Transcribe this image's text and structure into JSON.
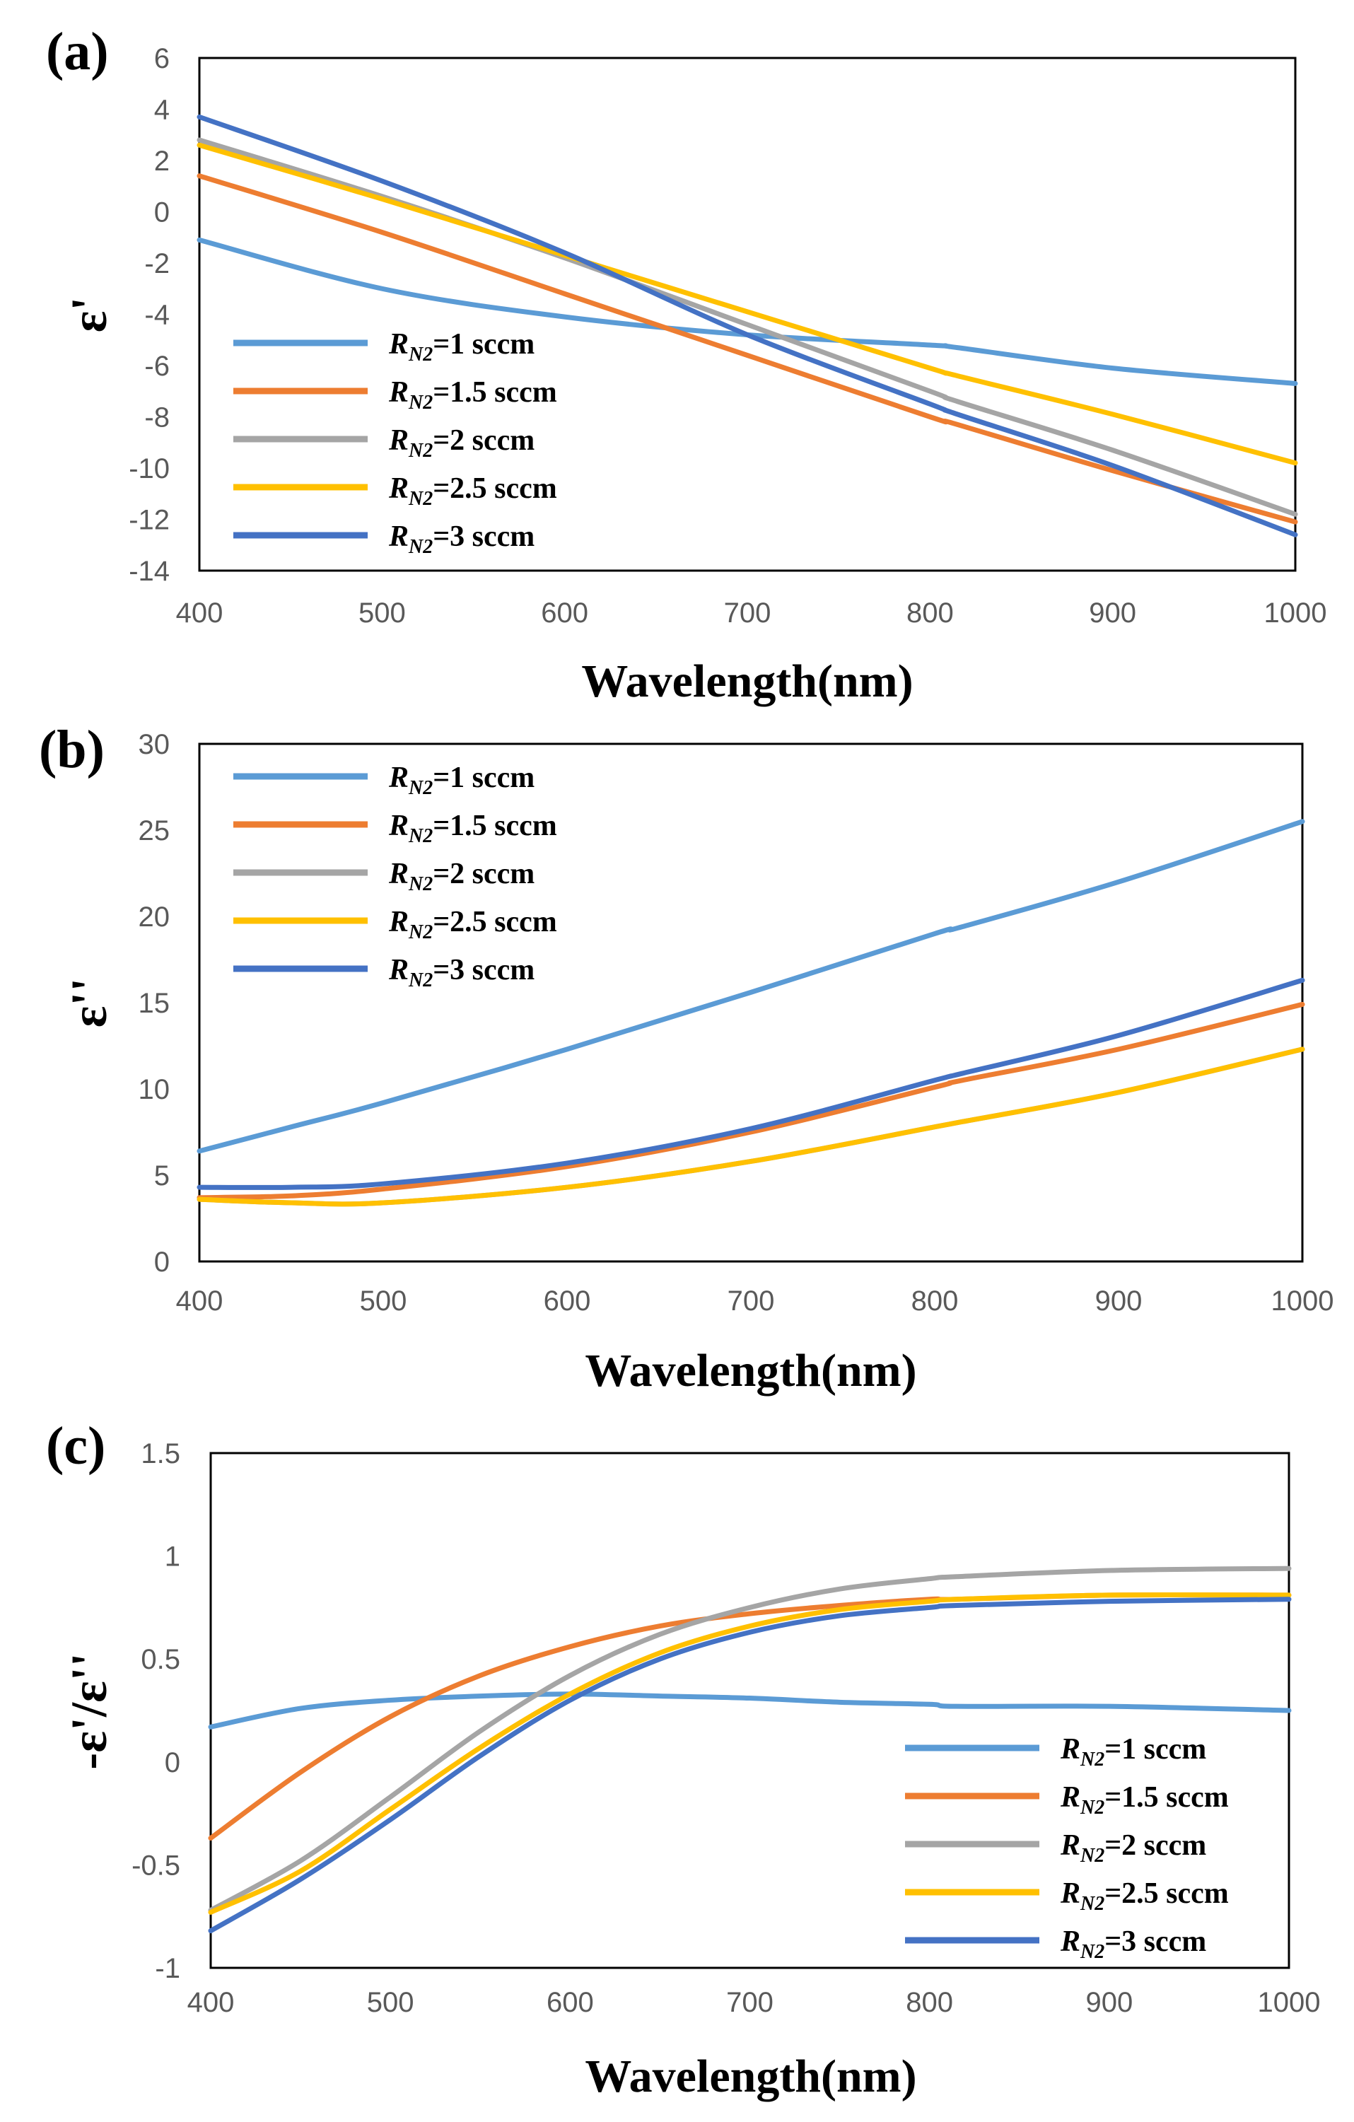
{
  "colors": {
    "R_N2=1 sccm": "#5B9BD5",
    "R_N2=1.5 sccm": "#ED7D31",
    "R_N2=2 sccm": "#A5A5A5",
    "R_N2=2.5 sccm": "#FFC000",
    "R_N2=3 sccm": "#4472C4"
  },
  "legend": [
    {
      "prefix": "R",
      "sub": "N2",
      "suffix": "=1 sccm"
    },
    {
      "prefix": "R",
      "sub": "N2",
      "suffix": "=1.5 sccm"
    },
    {
      "prefix": "R",
      "sub": "N2",
      "suffix": "=2 sccm"
    },
    {
      "prefix": "R",
      "sub": "N2",
      "suffix": "=2.5 sccm"
    },
    {
      "prefix": "R",
      "sub": "N2",
      "suffix": "=3 sccm"
    }
  ],
  "chart_data": [
    {
      "panel": "(a)",
      "type": "line",
      "xlabel": "Wavelength(nm)",
      "ylabel": "ε'",
      "xlim": [
        400,
        1000
      ],
      "ylim": [
        -14,
        6
      ],
      "xticks": [
        400,
        500,
        600,
        700,
        800,
        900,
        1000
      ],
      "yticks": [
        6,
        4,
        2,
        0,
        -2,
        -4,
        -6,
        -8,
        -10,
        -12,
        -14
      ],
      "legend_position": "lower-left",
      "x": [
        400,
        500,
        600,
        700,
        800,
        815,
        900,
        1000
      ],
      "series": [
        {
          "name": "R_N2=1 sccm",
          "values": [
            -1.1,
            -3.0,
            -4.1,
            -4.8,
            -5.2,
            -5.3,
            -6.1,
            -6.7
          ]
        },
        {
          "name": "R_N2=1.5 sccm",
          "values": [
            1.4,
            -0.8,
            -3.2,
            -5.6,
            -8.0,
            -8.3,
            -10.1,
            -12.1
          ]
        },
        {
          "name": "R_N2=2 sccm",
          "values": [
            2.8,
            0.6,
            -1.8,
            -4.4,
            -7.0,
            -7.4,
            -9.3,
            -11.8
          ]
        },
        {
          "name": "R_N2=2.5 sccm",
          "values": [
            2.6,
            0.5,
            -1.7,
            -3.9,
            -6.1,
            -6.4,
            -7.9,
            -9.8
          ]
        },
        {
          "name": "R_N2=3 sccm",
          "values": [
            3.7,
            1.2,
            -1.6,
            -4.8,
            -7.5,
            -7.9,
            -9.9,
            -12.6
          ]
        }
      ]
    },
    {
      "panel": "(b)",
      "type": "line",
      "xlabel": "Wavelength(nm)",
      "ylabel": "ε''",
      "xlim": [
        400,
        1000
      ],
      "ylim": [
        0,
        30
      ],
      "xticks": [
        400,
        500,
        600,
        700,
        800,
        900,
        1000
      ],
      "yticks": [
        30,
        25,
        20,
        15,
        10,
        5,
        0
      ],
      "legend_position": "top-left",
      "x": [
        400,
        450,
        500,
        600,
        700,
        800,
        815,
        900,
        1000
      ],
      "series": [
        {
          "name": "R_N2=1 sccm",
          "values": [
            6.4,
            7.8,
            9.2,
            12.3,
            15.6,
            19.0,
            19.4,
            22.0,
            25.5
          ]
        },
        {
          "name": "R_N2=1.5 sccm",
          "values": [
            3.7,
            3.8,
            4.2,
            5.5,
            7.5,
            10.1,
            10.5,
            12.3,
            14.9
          ]
        },
        {
          "name": "R_N2=2 sccm",
          "values": [
            3.6,
            3.4,
            3.4,
            4.3,
            5.8,
            7.8,
            8.1,
            9.8,
            12.3
          ]
        },
        {
          "name": "R_N2=2.5 sccm",
          "values": [
            3.6,
            3.4,
            3.4,
            4.3,
            5.8,
            7.8,
            8.1,
            9.8,
            12.3
          ]
        },
        {
          "name": "R_N2=3 sccm",
          "values": [
            4.3,
            4.3,
            4.5,
            5.7,
            7.7,
            10.5,
            10.9,
            13.1,
            16.3
          ]
        }
      ]
    },
    {
      "panel": "(c)",
      "type": "line",
      "xlabel": "Wavelength(nm)",
      "ylabel": "-ε'/ε''",
      "xlim": [
        400,
        1000
      ],
      "ylim": [
        -1,
        1.5
      ],
      "xticks": [
        400,
        500,
        600,
        700,
        800,
        900,
        1000
      ],
      "yticks": [
        1.5,
        1,
        0.5,
        0,
        -0.5,
        -1
      ],
      "legend_position": "lower-right",
      "x": [
        400,
        450,
        500,
        550,
        600,
        650,
        700,
        750,
        800,
        815,
        900,
        1000
      ],
      "series": [
        {
          "name": "R_N2=1 sccm",
          "values": [
            0.17,
            0.26,
            0.3,
            0.32,
            0.33,
            0.32,
            0.31,
            0.29,
            0.28,
            0.27,
            0.27,
            0.25
          ]
        },
        {
          "name": "R_N2=1.5 sccm",
          "values": [
            -0.37,
            -0.05,
            0.22,
            0.42,
            0.56,
            0.66,
            0.72,
            0.76,
            0.79,
            0.79,
            0.81,
            0.81
          ]
        },
        {
          "name": "R_N2=2 sccm",
          "values": [
            -0.72,
            -0.48,
            -0.17,
            0.15,
            0.42,
            0.62,
            0.75,
            0.84,
            0.89,
            0.9,
            0.93,
            0.94
          ]
        },
        {
          "name": "R_N2=2.5 sccm",
          "values": [
            -0.73,
            -0.53,
            -0.23,
            0.07,
            0.33,
            0.53,
            0.66,
            0.74,
            0.78,
            0.79,
            0.81,
            0.81
          ]
        },
        {
          "name": "R_N2=3 sccm",
          "values": [
            -0.82,
            -0.57,
            -0.28,
            0.03,
            0.3,
            0.5,
            0.63,
            0.71,
            0.75,
            0.76,
            0.78,
            0.79
          ]
        }
      ]
    }
  ]
}
